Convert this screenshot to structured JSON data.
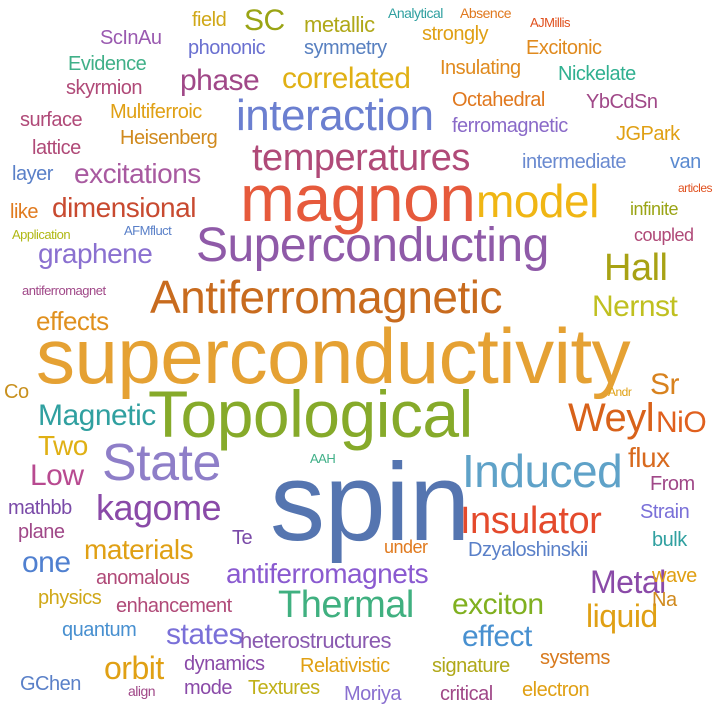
{
  "words": [
    {
      "text": "superconductivity",
      "color": "#e5a133"
    },
    {
      "text": "spin",
      "color": "#5575b0"
    },
    {
      "text": "Topological",
      "color": "#86aa2a"
    },
    {
      "text": "magnon",
      "color": "#e65a3c"
    },
    {
      "text": "Superconducting",
      "color": "#8f5aa8"
    },
    {
      "text": "Antiferromagnetic",
      "color": "#c86b1e"
    },
    {
      "text": "State",
      "color": "#8e7ec8"
    },
    {
      "text": "Induced",
      "color": "#5fa2c8"
    },
    {
      "text": "interaction",
      "color": "#6b7fd0"
    },
    {
      "text": "model",
      "color": "#f0b614"
    },
    {
      "text": "temperatures",
      "color": "#b04a78"
    },
    {
      "text": "Insulator",
      "color": "#e44a2c"
    },
    {
      "text": "Thermal",
      "color": "#40b080"
    },
    {
      "text": "Weyl",
      "color": "#d8621a"
    },
    {
      "text": "kagome",
      "color": "#8a4aa8"
    },
    {
      "text": "antiferromagnets",
      "color": "#8a5ad0"
    },
    {
      "text": "Hall",
      "color": "#a8a214"
    },
    {
      "text": "excitations",
      "color": "#a85aa0"
    },
    {
      "text": "dimensional",
      "color": "#c84a30"
    },
    {
      "text": "graphene",
      "color": "#8a70d0"
    },
    {
      "text": "correlated",
      "color": "#e0b014"
    },
    {
      "text": "phase",
      "color": "#a04888"
    },
    {
      "text": "Magnetic",
      "color": "#30a0a0"
    },
    {
      "text": "NiO",
      "color": "#e0601e"
    },
    {
      "text": "Metal",
      "color": "#8a4aa8"
    },
    {
      "text": "exciton",
      "color": "#80b020"
    },
    {
      "text": "effect",
      "color": "#4890d0"
    },
    {
      "text": "liquid",
      "color": "#e0a014"
    },
    {
      "text": "materials",
      "color": "#e0a014"
    },
    {
      "text": "states",
      "color": "#7a70d8"
    },
    {
      "text": "orbit",
      "color": "#e0a014"
    },
    {
      "text": "Low",
      "color": "#b84a90"
    },
    {
      "text": "Two",
      "color": "#e0b014"
    },
    {
      "text": "one",
      "color": "#5080d0"
    },
    {
      "text": "Nernst",
      "color": "#c0c020"
    },
    {
      "text": "SC",
      "color": "#9aa414"
    },
    {
      "text": "flux",
      "color": "#d86a1e"
    },
    {
      "text": "effects",
      "color": "#e0901e"
    },
    {
      "text": "Sr",
      "color": "#d8821e"
    },
    {
      "text": "Insulating",
      "color": "#e08a1e"
    },
    {
      "text": "Excitonic",
      "color": "#e08a1e"
    },
    {
      "text": "Octahedral",
      "color": "#e0781e"
    },
    {
      "text": "YbCdSn",
      "color": "#a04888"
    },
    {
      "text": "metallic",
      "color": "#b0a818"
    },
    {
      "text": "symmetry",
      "color": "#5880c0"
    },
    {
      "text": "phononic",
      "color": "#6a70d0"
    },
    {
      "text": "ScInAu",
      "color": "#9a5ab0"
    },
    {
      "text": "field",
      "color": "#d0a818"
    },
    {
      "text": "strongly",
      "color": "#e0a014"
    },
    {
      "text": "Evidence",
      "color": "#40b088"
    },
    {
      "text": "skyrmion",
      "color": "#b04a78"
    },
    {
      "text": "Nickelate",
      "color": "#30b090"
    },
    {
      "text": "Multiferroic",
      "color": "#e0a014"
    },
    {
      "text": "Heisenberg",
      "color": "#d08a1e"
    },
    {
      "text": "ferromagnetic",
      "color": "#8a6ac8"
    },
    {
      "text": "JGPark",
      "color": "#e0a014"
    },
    {
      "text": "intermediate",
      "color": "#6a8ad0"
    },
    {
      "text": "van",
      "color": "#5a8ad0"
    },
    {
      "text": "surface",
      "color": "#b04a78"
    },
    {
      "text": "lattice",
      "color": "#b04a78"
    },
    {
      "text": "layer",
      "color": "#5a80c8"
    },
    {
      "text": "like",
      "color": "#e07a1e"
    },
    {
      "text": "infinite",
      "color": "#9aa414"
    },
    {
      "text": "coupled",
      "color": "#b04a78"
    },
    {
      "text": "Analytical",
      "color": "#30a0a0"
    },
    {
      "text": "Absence",
      "color": "#e0781e"
    },
    {
      "text": "AJMillis",
      "color": "#e0501e"
    },
    {
      "text": "articles",
      "color": "#e0501e"
    },
    {
      "text": "Application",
      "color": "#b0b814"
    },
    {
      "text": "AFMfluct",
      "color": "#5a80c8"
    },
    {
      "text": "antiferromagnet",
      "color": "#a04888"
    },
    {
      "text": "Co",
      "color": "#c8901e"
    },
    {
      "text": "Andr",
      "color": "#e0a014"
    },
    {
      "text": "AAH",
      "color": "#40b088"
    },
    {
      "text": "mathbb",
      "color": "#7a4aa8"
    },
    {
      "text": "plane",
      "color": "#a04888"
    },
    {
      "text": "Te",
      "color": "#7a4aa8"
    },
    {
      "text": "under",
      "color": "#e07a1e"
    },
    {
      "text": "Dzyaloshinskii",
      "color": "#5a80c8"
    },
    {
      "text": "bulk",
      "color": "#30a0a0"
    },
    {
      "text": "Strain",
      "color": "#7a70d8"
    },
    {
      "text": "From",
      "color": "#a04888"
    },
    {
      "text": "anomalous",
      "color": "#b04a78"
    },
    {
      "text": "wave",
      "color": "#e0a014"
    },
    {
      "text": "Na",
      "color": "#d08a1e"
    },
    {
      "text": "physics",
      "color": "#d0a818"
    },
    {
      "text": "enhancement",
      "color": "#b04a78"
    },
    {
      "text": "quantum",
      "color": "#4890d0"
    },
    {
      "text": "heterostructures",
      "color": "#8a5ab0"
    },
    {
      "text": "dynamics",
      "color": "#8a4aa8"
    },
    {
      "text": "Relativistic",
      "color": "#e0a014"
    },
    {
      "text": "signature",
      "color": "#b0a818"
    },
    {
      "text": "systems",
      "color": "#d87a1e"
    },
    {
      "text": "GChen",
      "color": "#5a80c8"
    },
    {
      "text": "align",
      "color": "#a04888"
    },
    {
      "text": "mode",
      "color": "#8a4aa8"
    },
    {
      "text": "Textures",
      "color": "#c0b018"
    },
    {
      "text": "Moriya",
      "color": "#8a70d0"
    },
    {
      "text": "critical",
      "color": "#a04888"
    },
    {
      "text": "electron",
      "color": "#e0a014"
    }
  ]
}
